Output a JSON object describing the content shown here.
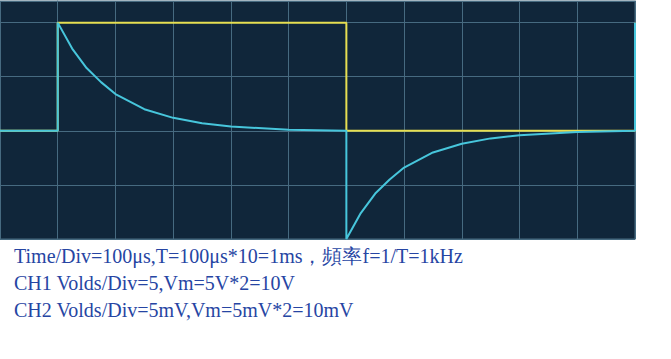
{
  "chart_data": {
    "type": "line",
    "x": [
      -100,
      0,
      0,
      25,
      50,
      75,
      100,
      150,
      200,
      250,
      300,
      400,
      500,
      500,
      525,
      550,
      575,
      600,
      650,
      700,
      750,
      800,
      900,
      1000,
      1000
    ],
    "xlim": [
      -100,
      1000
    ],
    "xticks": [
      -100,
      0,
      100,
      200,
      300,
      400,
      500,
      600,
      700,
      800,
      900,
      1000
    ],
    "ylim": [
      -10,
      12
    ],
    "yticks": [
      -10,
      -5,
      0,
      5,
      10
    ],
    "y2lim": [
      -10,
      12
    ],
    "y2ticks": [
      -10,
      -5,
      0,
      5,
      10
    ],
    "series": [
      {
        "color": "#e6df52",
        "values": [
          0,
          0,
          10,
          10,
          10,
          10,
          10,
          10,
          10,
          10,
          10,
          10,
          10,
          0,
          0,
          0,
          0,
          0,
          0,
          0,
          0,
          0,
          0,
          0,
          10
        ]
      },
      {
        "color": "#47c6dc",
        "axis": "y2",
        "values": [
          0,
          0,
          10,
          7.6,
          5.8,
          4.5,
          3.4,
          2,
          1.2,
          0.7,
          0.4,
          0.1,
          0,
          -10,
          -7.6,
          -5.8,
          -4.5,
          -3.4,
          -2,
          -1.2,
          -0.7,
          -0.4,
          -0.1,
          0,
          10
        ]
      }
    ],
    "grid": true,
    "tick_labels": false,
    "annotations": [
      "Time/Div=100μs,T=100μs*10=1ms，頻率f=1/T=1kHz",
      "CH1 Volds/Div=5,Vm=5V*2=10V",
      "CH2 Volds/Div=5mV,Vm=5mV*2=10mV"
    ]
  }
}
